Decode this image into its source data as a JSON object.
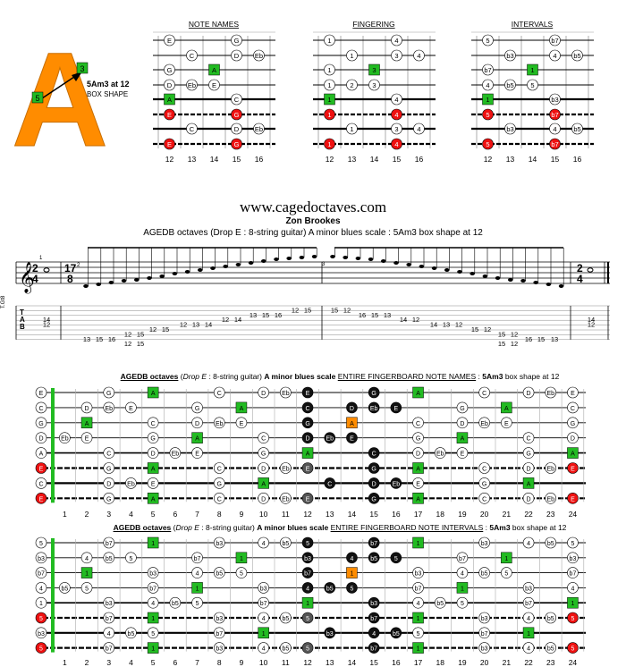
{
  "logo": {
    "letter": "A",
    "shape_label": "5Am3 at 12",
    "shape_sub": "BOX SHAPE",
    "marker_top": "3",
    "marker_left": "5",
    "accent": "#ff8c00",
    "green": "#22bb22",
    "red": "#ee1111"
  },
  "mini_boxes": [
    {
      "title": "NOTE NAMES",
      "frets": [
        "12",
        "13",
        "14",
        "15",
        "16"
      ],
      "cells": [
        [
          1,
          0,
          "E",
          "w"
        ],
        [
          1,
          3,
          "G",
          "w"
        ],
        [
          2,
          1,
          "C",
          "w"
        ],
        [
          2,
          3,
          "D",
          "w"
        ],
        [
          2,
          4,
          "Eb",
          "w"
        ],
        [
          3,
          0,
          "G",
          "w"
        ],
        [
          3,
          2,
          "A",
          "g"
        ],
        [
          4,
          0,
          "D",
          "w"
        ],
        [
          4,
          1,
          "Eb",
          "w"
        ],
        [
          4,
          2,
          "E",
          "w"
        ],
        [
          5,
          0,
          "A",
          "g"
        ],
        [
          5,
          3,
          "C",
          "w"
        ],
        [
          6,
          0,
          "E",
          "r"
        ],
        [
          6,
          3,
          "G",
          "r"
        ],
        [
          7,
          1,
          "C",
          "w"
        ],
        [
          7,
          3,
          "D",
          "w"
        ],
        [
          7,
          4,
          "Eb",
          "w"
        ],
        [
          8,
          0,
          "E",
          "r"
        ],
        [
          8,
          3,
          "G",
          "r"
        ]
      ]
    },
    {
      "title": "FINGERING",
      "frets": [
        "12",
        "13",
        "14",
        "15",
        "16"
      ],
      "cells": [
        [
          1,
          0,
          "1",
          "w"
        ],
        [
          1,
          3,
          "4",
          "w"
        ],
        [
          2,
          1,
          "1",
          "w"
        ],
        [
          2,
          3,
          "3",
          "w"
        ],
        [
          2,
          4,
          "4",
          "w"
        ],
        [
          3,
          0,
          "1",
          "w"
        ],
        [
          3,
          2,
          "3",
          "g"
        ],
        [
          4,
          0,
          "1",
          "w"
        ],
        [
          4,
          1,
          "2",
          "w"
        ],
        [
          4,
          2,
          "3",
          "w"
        ],
        [
          5,
          0,
          "1",
          "g"
        ],
        [
          5,
          3,
          "4",
          "w"
        ],
        [
          6,
          0,
          "1",
          "r"
        ],
        [
          6,
          3,
          "4",
          "r"
        ],
        [
          7,
          1,
          "1",
          "w"
        ],
        [
          7,
          3,
          "3",
          "w"
        ],
        [
          7,
          4,
          "4",
          "w"
        ],
        [
          8,
          0,
          "1",
          "r"
        ],
        [
          8,
          3,
          "4",
          "r"
        ]
      ]
    },
    {
      "title": "INTERVALS",
      "frets": [
        "12",
        "13",
        "14",
        "15",
        "16"
      ],
      "cells": [
        [
          1,
          0,
          "5",
          "w"
        ],
        [
          1,
          3,
          "b7",
          "w"
        ],
        [
          2,
          1,
          "b3",
          "w"
        ],
        [
          2,
          3,
          "4",
          "w"
        ],
        [
          2,
          4,
          "b5",
          "w"
        ],
        [
          3,
          0,
          "b7",
          "w"
        ],
        [
          3,
          2,
          "1",
          "g"
        ],
        [
          4,
          0,
          "4",
          "w"
        ],
        [
          4,
          1,
          "b5",
          "w"
        ],
        [
          4,
          2,
          "5",
          "w"
        ],
        [
          5,
          0,
          "1",
          "g"
        ],
        [
          5,
          3,
          "b3",
          "w"
        ],
        [
          6,
          0,
          "5",
          "r"
        ],
        [
          6,
          3,
          "b7",
          "r"
        ],
        [
          7,
          1,
          "b3",
          "w"
        ],
        [
          7,
          3,
          "4",
          "w"
        ],
        [
          7,
          4,
          "b5",
          "w"
        ],
        [
          8,
          0,
          "5",
          "r"
        ],
        [
          8,
          3,
          "b7",
          "r"
        ]
      ]
    }
  ],
  "site": "www.cagedoctaves.com",
  "author": "Zon Brookes",
  "subtitle": "AGEDB octaves (Drop E : 8-string guitar) A minor blues scale : 5Am3 box shape at 12",
  "staff": {
    "clef_label": "T.Gt8",
    "time_left_top": "2",
    "time_left_bot": "4",
    "time_mid_top": "17",
    "time_mid_bot": "8",
    "time_end_top": "2",
    "time_end_bot": "4",
    "tab_letters": [
      "T",
      "A",
      "B"
    ],
    "measure_numbers": [
      "1",
      "2",
      "3"
    ],
    "tab_m1": [
      [
        1,
        "14"
      ],
      [
        2,
        "12"
      ]
    ],
    "tab_m2": [
      [
        5,
        "13"
      ],
      [
        5,
        "15"
      ],
      [
        5,
        "16"
      ],
      [
        4,
        "12"
      ],
      [
        6,
        "12"
      ],
      [
        4,
        "15"
      ],
      [
        6,
        "15"
      ],
      [
        3,
        "12"
      ],
      [
        3,
        "15"
      ],
      [
        2,
        "12"
      ],
      [
        2,
        "13"
      ],
      [
        2,
        "14"
      ],
      [
        1,
        "12"
      ],
      [
        1,
        "14"
      ],
      [
        0,
        "13"
      ],
      [
        0,
        "15"
      ],
      [
        0,
        "16"
      ],
      [
        -1,
        "12"
      ],
      [
        -1,
        "15"
      ]
    ],
    "tab_m3": [
      [
        -1,
        "15"
      ],
      [
        -1,
        "12"
      ],
      [
        0,
        "16"
      ],
      [
        0,
        "15"
      ],
      [
        0,
        "13"
      ],
      [
        1,
        "14"
      ],
      [
        1,
        "12"
      ],
      [
        2,
        "14"
      ],
      [
        2,
        "13"
      ],
      [
        2,
        "12"
      ],
      [
        3,
        "15"
      ],
      [
        3,
        "12"
      ],
      [
        4,
        "15"
      ],
      [
        6,
        "15"
      ],
      [
        4,
        "12"
      ],
      [
        6,
        "12"
      ],
      [
        5,
        "16"
      ],
      [
        5,
        "15"
      ],
      [
        5,
        "13"
      ]
    ],
    "tab_m4": [
      [
        1,
        "14"
      ],
      [
        2,
        "12"
      ]
    ]
  },
  "fb_notes": {
    "title_parts": [
      "AGEDB octaves",
      "(",
      "Drop E",
      ": 8-string guitar)",
      "A minor blues scale",
      "ENTIRE FINGERBOARD NOTE NAMES",
      ":",
      "5Am3",
      "box shape at 12"
    ],
    "open": [
      "E",
      "C",
      "G",
      "D",
      "A",
      "E",
      "C",
      "E"
    ],
    "rows": [
      [
        [
          3,
          "G"
        ],
        [
          5,
          "A"
        ],
        [
          8,
          "C"
        ],
        [
          10,
          "D"
        ],
        [
          11,
          "Eb"
        ],
        [
          12,
          "E"
        ],
        [
          15,
          "G"
        ],
        [
          17,
          "A"
        ],
        [
          20,
          "C"
        ],
        [
          22,
          "D"
        ],
        [
          23,
          "Eb"
        ],
        [
          24,
          "E"
        ]
      ],
      [
        [
          2,
          "D"
        ],
        [
          3,
          "Eb"
        ],
        [
          4,
          "E"
        ],
        [
          7,
          "G"
        ],
        [
          9,
          "A"
        ],
        [
          12,
          "C"
        ],
        [
          14,
          "D"
        ],
        [
          15,
          "Eb"
        ],
        [
          16,
          "E"
        ],
        [
          19,
          "G"
        ],
        [
          21,
          "A"
        ],
        [
          24,
          "C"
        ]
      ],
      [
        [
          2,
          "A"
        ],
        [
          5,
          "C"
        ],
        [
          7,
          "D"
        ],
        [
          8,
          "Eb"
        ],
        [
          9,
          "E"
        ],
        [
          12,
          "G"
        ],
        [
          14,
          "A"
        ],
        [
          17,
          "C"
        ],
        [
          19,
          "D"
        ],
        [
          20,
          "Eb"
        ],
        [
          21,
          "E"
        ],
        [
          24,
          "G"
        ]
      ],
      [
        [
          1,
          "Eb"
        ],
        [
          2,
          "E"
        ],
        [
          5,
          "G"
        ],
        [
          7,
          "A"
        ],
        [
          10,
          "C"
        ],
        [
          12,
          "D"
        ],
        [
          13,
          "Eb"
        ],
        [
          14,
          "E"
        ],
        [
          17,
          "G"
        ],
        [
          19,
          "A"
        ],
        [
          22,
          "C"
        ],
        [
          24,
          "D"
        ]
      ],
      [
        [
          3,
          "C"
        ],
        [
          5,
          "D"
        ],
        [
          6,
          "Eb"
        ],
        [
          7,
          "E"
        ],
        [
          10,
          "G"
        ],
        [
          12,
          "A"
        ],
        [
          15,
          "C"
        ],
        [
          17,
          "D"
        ],
        [
          18,
          "Eb"
        ],
        [
          19,
          "E"
        ],
        [
          22,
          "G"
        ],
        [
          24,
          "A"
        ]
      ],
      [
        [
          3,
          "G"
        ],
        [
          5,
          "A"
        ],
        [
          8,
          "C"
        ],
        [
          10,
          "D"
        ],
        [
          11,
          "Eb"
        ],
        [
          12,
          "E"
        ],
        [
          15,
          "G"
        ],
        [
          17,
          "A"
        ],
        [
          20,
          "C"
        ],
        [
          22,
          "D"
        ],
        [
          23,
          "Eb"
        ],
        [
          24,
          "E"
        ]
      ],
      [
        [
          3,
          "D"
        ],
        [
          4,
          "Eb"
        ],
        [
          5,
          "E"
        ],
        [
          8,
          "G"
        ],
        [
          10,
          "A"
        ],
        [
          13,
          "C"
        ],
        [
          15,
          "D"
        ],
        [
          16,
          "Eb"
        ],
        [
          17,
          "E"
        ],
        [
          20,
          "G"
        ],
        [
          22,
          "A"
        ]
      ],
      [
        [
          3,
          "G"
        ],
        [
          5,
          "A"
        ],
        [
          8,
          "C"
        ],
        [
          10,
          "D"
        ],
        [
          11,
          "Eb"
        ],
        [
          12,
          "E"
        ],
        [
          15,
          "G"
        ],
        [
          17,
          "A"
        ],
        [
          20,
          "C"
        ],
        [
          22,
          "D"
        ],
        [
          23,
          "Eb"
        ],
        [
          24,
          "E"
        ]
      ]
    ]
  },
  "fb_intervals": {
    "title_parts": [
      "AGEDB octaves",
      "(",
      "Drop E",
      ": 8-string guitar)",
      "A minor blues scale",
      "ENTIRE FINGERBOARD NOTE INTERVALS",
      ":",
      "5Am3",
      "box shape at 12"
    ],
    "open": [
      "5",
      "b3",
      "b7",
      "4",
      "1",
      "5",
      "b3",
      "5"
    ],
    "rows": [
      [
        [
          3,
          "b7"
        ],
        [
          5,
          "1"
        ],
        [
          8,
          "b3"
        ],
        [
          10,
          "4"
        ],
        [
          11,
          "b5"
        ],
        [
          12,
          "5"
        ],
        [
          15,
          "b7"
        ],
        [
          17,
          "1"
        ],
        [
          20,
          "b3"
        ],
        [
          22,
          "4"
        ],
        [
          23,
          "b5"
        ],
        [
          24,
          "5"
        ]
      ],
      [
        [
          2,
          "4"
        ],
        [
          3,
          "b5"
        ],
        [
          4,
          "5"
        ],
        [
          7,
          "b7"
        ],
        [
          9,
          "1"
        ],
        [
          12,
          "b3"
        ],
        [
          14,
          "4"
        ],
        [
          15,
          "b5"
        ],
        [
          16,
          "5"
        ],
        [
          19,
          "b7"
        ],
        [
          21,
          "1"
        ],
        [
          24,
          "b3"
        ]
      ],
      [
        [
          2,
          "1"
        ],
        [
          5,
          "b3"
        ],
        [
          7,
          "4"
        ],
        [
          8,
          "b5"
        ],
        [
          9,
          "5"
        ],
        [
          12,
          "b7"
        ],
        [
          14,
          "1"
        ],
        [
          17,
          "b3"
        ],
        [
          19,
          "4"
        ],
        [
          20,
          "b5"
        ],
        [
          21,
          "5"
        ],
        [
          24,
          "b7"
        ]
      ],
      [
        [
          1,
          "b5"
        ],
        [
          2,
          "5"
        ],
        [
          5,
          "b7"
        ],
        [
          7,
          "1"
        ],
        [
          10,
          "b3"
        ],
        [
          12,
          "4"
        ],
        [
          13,
          "b5"
        ],
        [
          14,
          "5"
        ],
        [
          17,
          "b7"
        ],
        [
          19,
          "1"
        ],
        [
          22,
          "b3"
        ],
        [
          24,
          "4"
        ]
      ],
      [
        [
          3,
          "b3"
        ],
        [
          5,
          "4"
        ],
        [
          6,
          "b5"
        ],
        [
          7,
          "5"
        ],
        [
          10,
          "b7"
        ],
        [
          12,
          "1"
        ],
        [
          15,
          "b3"
        ],
        [
          17,
          "4"
        ],
        [
          18,
          "b5"
        ],
        [
          19,
          "5"
        ],
        [
          22,
          "b7"
        ],
        [
          24,
          "1"
        ]
      ],
      [
        [
          3,
          "b7"
        ],
        [
          5,
          "1"
        ],
        [
          8,
          "b3"
        ],
        [
          10,
          "4"
        ],
        [
          11,
          "b5"
        ],
        [
          12,
          "5"
        ],
        [
          15,
          "b7"
        ],
        [
          17,
          "1"
        ],
        [
          20,
          "b3"
        ],
        [
          22,
          "4"
        ],
        [
          23,
          "b5"
        ],
        [
          24,
          "5"
        ]
      ],
      [
        [
          3,
          "4"
        ],
        [
          4,
          "b5"
        ],
        [
          5,
          "5"
        ],
        [
          8,
          "b7"
        ],
        [
          10,
          "1"
        ],
        [
          13,
          "b3"
        ],
        [
          15,
          "4"
        ],
        [
          16,
          "b5"
        ],
        [
          17,
          "5"
        ],
        [
          20,
          "b7"
        ],
        [
          22,
          "1"
        ]
      ],
      [
        [
          3,
          "b7"
        ],
        [
          5,
          "1"
        ],
        [
          8,
          "b3"
        ],
        [
          10,
          "4"
        ],
        [
          11,
          "b5"
        ],
        [
          12,
          "5"
        ],
        [
          15,
          "b7"
        ],
        [
          17,
          "1"
        ],
        [
          20,
          "b3"
        ],
        [
          22,
          "4"
        ],
        [
          23,
          "b5"
        ],
        [
          24,
          "5"
        ]
      ]
    ]
  },
  "fret_numbers": [
    "1",
    "2",
    "3",
    "4",
    "5",
    "6",
    "7",
    "8",
    "9",
    "10",
    "11",
    "12",
    "13",
    "14",
    "15",
    "16",
    "17",
    "18",
    "19",
    "20",
    "21",
    "22",
    "23",
    "24"
  ],
  "box_cells": [
    [
      2,
      14,
      "orange"
    ],
    [
      6,
      12,
      "orange"
    ],
    [
      1,
      12,
      "black"
    ],
    [
      2,
      12,
      "black"
    ],
    [
      3,
      12,
      "black"
    ],
    [
      4,
      12,
      "black"
    ],
    [
      5,
      12,
      "black"
    ],
    [
      6,
      15,
      "black"
    ],
    [
      0,
      12,
      "black"
    ],
    [
      7,
      12,
      "black"
    ]
  ]
}
